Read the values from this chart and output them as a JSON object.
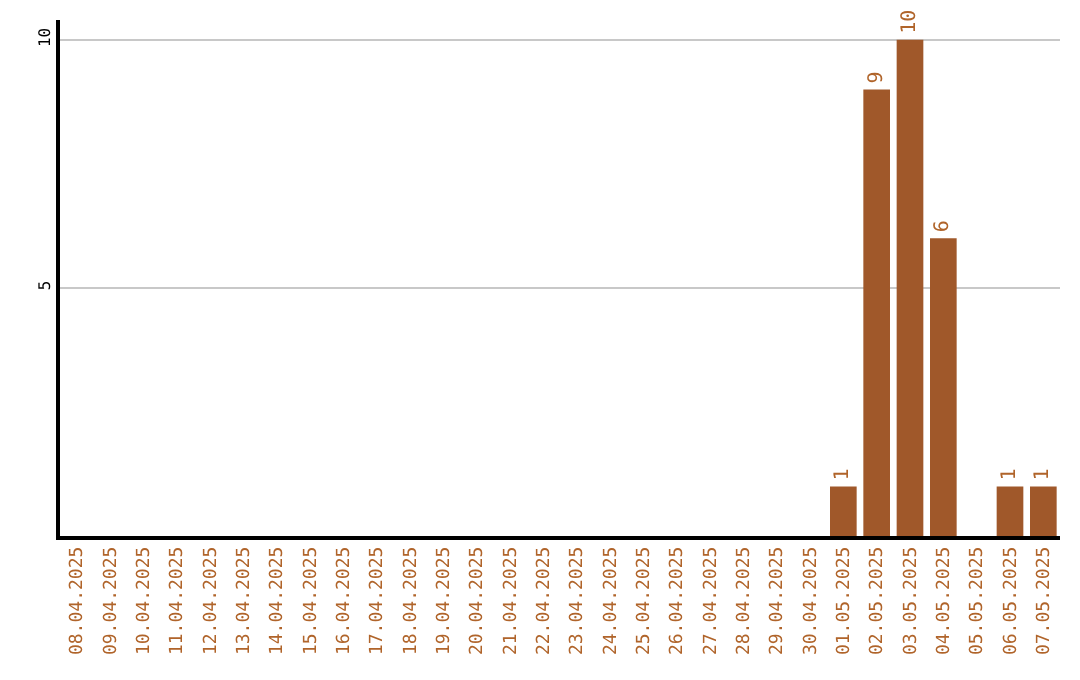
{
  "chart_data": {
    "type": "bar",
    "categories": [
      "08.04.2025",
      "09.04.2025",
      "10.04.2025",
      "11.04.2025",
      "12.04.2025",
      "13.04.2025",
      "14.04.2025",
      "15.04.2025",
      "16.04.2025",
      "17.04.2025",
      "18.04.2025",
      "19.04.2025",
      "20.04.2025",
      "21.04.2025",
      "22.04.2025",
      "23.04.2025",
      "24.04.2025",
      "25.04.2025",
      "26.04.2025",
      "27.04.2025",
      "28.04.2025",
      "29.04.2025",
      "30.04.2025",
      "01.05.2025",
      "02.05.2025",
      "03.05.2025",
      "04.05.2025",
      "05.05.2025",
      "06.05.2025",
      "07.05.2025"
    ],
    "values": [
      0,
      0,
      0,
      0,
      0,
      0,
      0,
      0,
      0,
      0,
      0,
      0,
      0,
      0,
      0,
      0,
      0,
      0,
      0,
      0,
      0,
      0,
      0,
      1,
      9,
      10,
      6,
      0,
      1,
      1
    ],
    "value_labels": [
      null,
      null,
      null,
      null,
      null,
      null,
      null,
      null,
      null,
      null,
      null,
      null,
      null,
      null,
      null,
      null,
      null,
      null,
      null,
      null,
      null,
      null,
      null,
      "1",
      "9",
      "10",
      "6",
      null,
      "1",
      "1"
    ],
    "color": "#a0582a",
    "ylim": [
      0,
      10.4
    ],
    "yticks": [
      5,
      10
    ],
    "grid": "y"
  }
}
